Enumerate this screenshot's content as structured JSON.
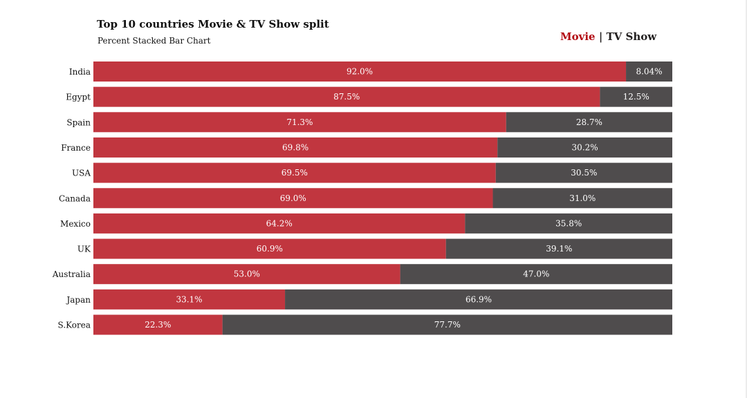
{
  "title": "Top 10 countries Movie & TV Show split",
  "subtitle": "Percent Stacked Bar Chart",
  "legend": {
    "movie": "Movie",
    "separator": "|",
    "tv": "TV Show"
  },
  "colors": {
    "movie": "#c1363f",
    "tv": "#4f4c4d",
    "movie_text": "#b20710",
    "tv_text": "#221f1f",
    "label_text": "#ffffff"
  },
  "chart_data": {
    "type": "bar",
    "orientation": "horizontal",
    "stacked": "percent",
    "categories": [
      "India",
      "Egypt",
      "Spain",
      "France",
      "USA",
      "Canada",
      "Mexico",
      "UK",
      "Australia",
      "Japan",
      "S.Korea"
    ],
    "series": [
      {
        "name": "Movie",
        "values": [
          92.0,
          87.5,
          71.3,
          69.8,
          69.5,
          69.0,
          64.2,
          60.9,
          53.0,
          33.1,
          22.3
        ],
        "labels": [
          "92.0%",
          "87.5%",
          "71.3%",
          "69.8%",
          "69.5%",
          "69.0%",
          "64.2%",
          "60.9%",
          "53.0%",
          "33.1%",
          "22.3%"
        ]
      },
      {
        "name": "TV Show",
        "values": [
          8.04,
          12.5,
          28.7,
          30.2,
          30.5,
          31.0,
          35.8,
          39.1,
          47.0,
          66.9,
          77.7
        ],
        "labels": [
          "8.04%",
          "12.5%",
          "28.7%",
          "30.2%",
          "30.5%",
          "31.0%",
          "35.8%",
          "39.1%",
          "47.0%",
          "66.9%",
          "77.7%"
        ]
      }
    ],
    "xlim": [
      0,
      100
    ],
    "grid": false,
    "legend_position": "top-right"
  }
}
